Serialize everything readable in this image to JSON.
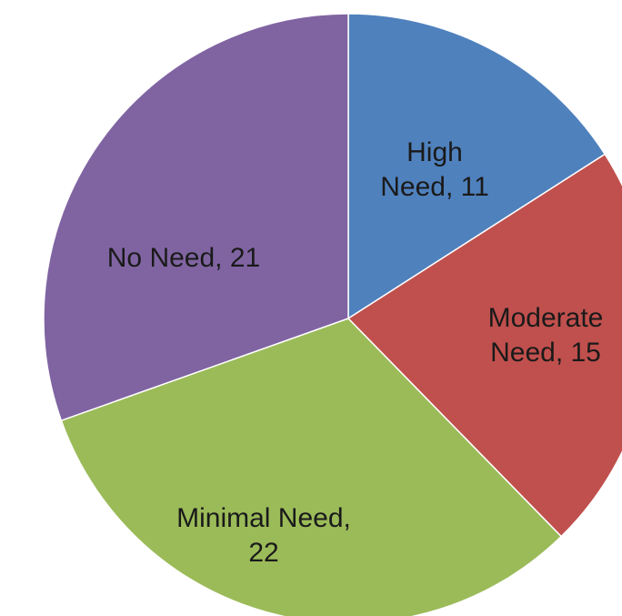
{
  "chart_data": {
    "type": "pie",
    "title": "",
    "slices": [
      {
        "label": "High Need",
        "value": 11,
        "color": "#4f81bd",
        "text_lines": [
          "High",
          "Need, 11"
        ]
      },
      {
        "label": "Moderate Need",
        "value": 15,
        "color": "#c0504d",
        "text_lines": [
          "Moderate",
          "Need, 15"
        ]
      },
      {
        "label": "Minimal Need",
        "value": 22,
        "color": "#9bbb59",
        "text_lines": [
          "Minimal Need,",
          "22"
        ]
      },
      {
        "label": "No Need",
        "value": 21,
        "color": "#8064a2",
        "text_lines": [
          "No Need, 21"
        ]
      }
    ],
    "start_angle": "12 o'clock",
    "direction": "clockwise",
    "legend": "none",
    "data_labels": "inside"
  }
}
